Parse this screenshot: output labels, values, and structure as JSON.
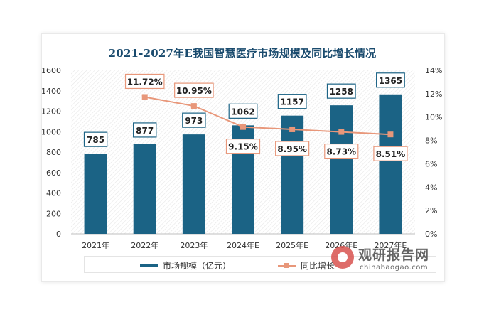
{
  "page": {
    "title": "2021-2027年E我国智慧医疗市场规模及同比增长情况"
  },
  "chart_data": {
    "type": "bar",
    "title": "2021-2027年E我国智慧医疗市场规模及同比增长情况",
    "categories": [
      "2021年",
      "2022年",
      "2023年",
      "2024年E",
      "2025年E",
      "2026年E",
      "2027年E"
    ],
    "series": [
      {
        "name": "市场规模（亿元）",
        "type": "bar",
        "axis": "left",
        "color": "#1b6385",
        "values": [
          785,
          877,
          973,
          1062,
          1157,
          1258,
          1365
        ],
        "labels": [
          "785",
          "877",
          "973",
          "1062",
          "1157",
          "1258",
          "1365"
        ]
      },
      {
        "name": "同比增长",
        "type": "line",
        "axis": "right",
        "color": "#e8977a",
        "values": [
          null,
          11.72,
          10.95,
          9.15,
          8.95,
          8.73,
          8.51
        ],
        "labels": [
          "",
          "11.72%",
          "10.95%",
          "9.15%",
          "8.95%",
          "8.73%",
          "8.51%"
        ]
      }
    ],
    "y_left": {
      "min": 0,
      "max": 1600,
      "ticks": [
        "0",
        "200",
        "400",
        "600",
        "800",
        "1000",
        "1200",
        "1400",
        "1600"
      ]
    },
    "y_right": {
      "min": 0,
      "max": 14,
      "ticks": [
        "0%",
        "2%",
        "4%",
        "6%",
        "8%",
        "10%",
        "12%",
        "14%"
      ]
    },
    "legend_position": "bottom",
    "grid": false
  },
  "legend": {
    "bar_label": "市场规模（亿元）",
    "line_label": "同比增长"
  },
  "watermark": {
    "cn": "观研报告网",
    "en": "chinabaogao.com"
  }
}
